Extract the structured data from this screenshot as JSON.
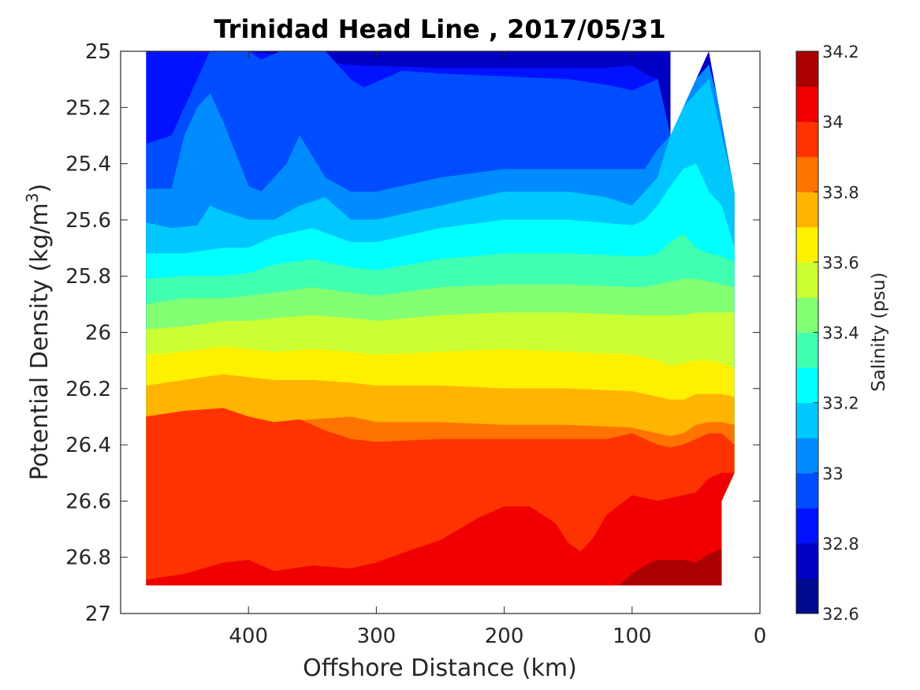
{
  "chart_data": {
    "type": "contourf",
    "title": "Trinidad Head Line , 2017/05/31",
    "xlabel": "Offshore Distance (km)",
    "ylabel_main": "Potential Density (kg/m",
    "ylabel_sup": "3",
    "ylabel_close": ")",
    "colorbar_label": "Salinity (psu)",
    "xlim": [
      500,
      0
    ],
    "x_reversed": true,
    "ylim": [
      25,
      27
    ],
    "y_reversed": true,
    "x_ticks": [
      400,
      300,
      200,
      100,
      0
    ],
    "x_tick_labels": [
      "400",
      "300",
      "200",
      "100",
      "0"
    ],
    "y_ticks": [
      25,
      25.2,
      25.4,
      25.6,
      25.8,
      26,
      26.2,
      26.4,
      26.6,
      26.8,
      27
    ],
    "y_tick_labels": [
      "25",
      "25.2",
      "25.4",
      "25.6",
      "25.8",
      "26",
      "26.2",
      "26.4",
      "26.6",
      "26.8",
      "27"
    ],
    "colorbar_ticks": [
      32.6,
      32.8,
      33,
      33.2,
      33.4,
      33.6,
      33.8,
      34,
      34.2
    ],
    "colorbar_tick_labels": [
      "32.6",
      "32.8",
      "33",
      "33.2",
      "33.4",
      "33.6",
      "33.8",
      "34",
      "34.2"
    ],
    "levels": [
      32.6,
      32.7,
      32.8,
      32.9,
      33.0,
      33.1,
      33.2,
      33.3,
      33.4,
      33.5,
      33.6,
      33.7,
      33.8,
      33.9,
      34.0,
      34.1,
      34.2
    ],
    "level_colors": [
      "#000a8f",
      "#0000c4",
      "#0012ff",
      "#004dff",
      "#008cff",
      "#00c8ff",
      "#00ffff",
      "#40ffb0",
      "#82ff72",
      "#ccff33",
      "#fff000",
      "#ffb400",
      "#ff7300",
      "#ff3300",
      "#f00000",
      "#aa0000"
    ],
    "data_extent": {
      "x_range": [
        480,
        20
      ],
      "y_range": [
        25,
        26.9
      ],
      "boundary": [
        [
          480,
          25
        ],
        [
          70,
          25
        ],
        [
          70,
          25.3
        ],
        [
          40,
          25
        ],
        [
          20,
          25.5
        ],
        [
          20,
          26.5
        ],
        [
          30,
          26.6
        ],
        [
          30,
          26.9
        ],
        [
          480,
          26.9
        ]
      ]
    },
    "contours": [
      {
        "level": 32.7,
        "x": [
          480,
          460,
          400,
          330,
          250,
          200,
          150,
          120,
          100,
          95,
          90
        ],
        "y": [
          25,
          25,
          25,
          25.0,
          25.0,
          25.0,
          25.0,
          25.0,
          25.0,
          25.03,
          25.06
        ]
      },
      {
        "level": 32.8,
        "x": [
          480,
          400,
          320,
          250,
          200,
          150,
          120,
          100,
          90,
          80
        ],
        "y": [
          25,
          25,
          25.05,
          25.06,
          25.06,
          25.06,
          25.06,
          25.05,
          25.08,
          25.1
        ]
      },
      {
        "level": 32.9,
        "x": [
          480,
          460,
          440,
          430,
          400,
          390,
          375,
          360,
          340,
          320,
          310,
          280,
          250,
          200,
          150,
          120,
          100,
          90,
          80,
          70
        ],
        "y": [
          25.33,
          25.3,
          25.1,
          25.0,
          25.0,
          25.03,
          25.0,
          25.0,
          25.0,
          25.1,
          25.13,
          25.07,
          25.08,
          25.09,
          25.1,
          25.12,
          25.14,
          25.12,
          25.1,
          25.3
        ]
      },
      {
        "level": 33.0,
        "x": [
          480,
          460,
          450,
          440,
          430,
          420,
          400,
          390,
          370,
          360,
          340,
          320,
          300,
          250,
          200,
          150,
          100,
          90,
          80,
          70,
          60,
          50,
          40,
          20
        ],
        "y": [
          25.49,
          25.49,
          25.3,
          25.2,
          25.15,
          25.25,
          25.48,
          25.5,
          25.4,
          25.3,
          25.45,
          25.5,
          25.5,
          25.45,
          25.42,
          25.42,
          25.42,
          25.42,
          25.35,
          25.3,
          25.2,
          25.1,
          25.05,
          25.4
        ]
      },
      {
        "level": 33.1,
        "x": [
          480,
          460,
          440,
          430,
          420,
          400,
          380,
          360,
          340,
          320,
          300,
          250,
          200,
          150,
          120,
          100,
          90,
          80,
          70,
          60,
          50,
          40,
          30,
          20
        ],
        "y": [
          25.61,
          25.63,
          25.62,
          25.55,
          25.57,
          25.6,
          25.6,
          25.55,
          25.52,
          25.6,
          25.6,
          25.55,
          25.5,
          25.5,
          25.52,
          25.55,
          25.5,
          25.45,
          25.3,
          25.2,
          25.15,
          25.1,
          25.3,
          25.5
        ]
      },
      {
        "level": 33.2,
        "x": [
          480,
          450,
          420,
          400,
          380,
          350,
          320,
          300,
          250,
          200,
          150,
          100,
          90,
          80,
          70,
          60,
          50,
          40,
          30,
          20
        ],
        "y": [
          25.72,
          25.72,
          25.7,
          25.7,
          25.66,
          25.63,
          25.68,
          25.68,
          25.63,
          25.6,
          25.6,
          25.62,
          25.6,
          25.55,
          25.48,
          25.42,
          25.4,
          25.5,
          25.55,
          25.7
        ]
      },
      {
        "level": 33.3,
        "x": [
          480,
          450,
          420,
          400,
          380,
          350,
          320,
          300,
          250,
          200,
          150,
          100,
          90,
          80,
          70,
          60,
          50,
          40,
          30,
          20
        ],
        "y": [
          25.81,
          25.8,
          25.8,
          25.79,
          25.76,
          25.74,
          25.77,
          25.78,
          25.74,
          25.72,
          25.72,
          25.73,
          25.73,
          25.72,
          25.68,
          25.65,
          25.7,
          25.72,
          25.73,
          25.75
        ]
      },
      {
        "level": 33.4,
        "x": [
          480,
          450,
          420,
          400,
          380,
          350,
          320,
          300,
          250,
          200,
          150,
          100,
          90,
          80,
          70,
          60,
          50,
          40,
          30,
          20
        ],
        "y": [
          25.9,
          25.88,
          25.88,
          25.87,
          25.86,
          25.84,
          25.86,
          25.87,
          25.84,
          25.83,
          25.83,
          25.84,
          25.84,
          25.83,
          25.82,
          25.81,
          25.81,
          25.82,
          25.83,
          25.84
        ]
      },
      {
        "level": 33.5,
        "x": [
          480,
          450,
          420,
          400,
          380,
          350,
          320,
          300,
          250,
          200,
          150,
          100,
          90,
          80,
          70,
          60,
          50,
          40,
          30,
          20
        ],
        "y": [
          25.99,
          25.98,
          25.96,
          25.96,
          25.95,
          25.94,
          25.95,
          25.96,
          25.94,
          25.93,
          25.93,
          25.94,
          25.94,
          25.94,
          25.94,
          25.94,
          25.93,
          25.93,
          25.93,
          25.93
        ]
      },
      {
        "level": 33.6,
        "x": [
          480,
          450,
          420,
          400,
          380,
          350,
          320,
          300,
          250,
          200,
          150,
          100,
          90,
          80,
          70,
          60,
          50,
          40,
          30,
          20
        ],
        "y": [
          26.08,
          26.07,
          26.05,
          26.06,
          26.07,
          26.06,
          26.07,
          26.08,
          26.07,
          26.06,
          26.07,
          26.08,
          26.09,
          26.1,
          26.12,
          26.11,
          26.1,
          26.1,
          26.11,
          26.13
        ]
      },
      {
        "level": 33.7,
        "x": [
          480,
          450,
          420,
          400,
          380,
          350,
          320,
          300,
          250,
          200,
          150,
          100,
          90,
          80,
          70,
          60,
          50,
          40,
          30,
          20
        ],
        "y": [
          26.19,
          26.17,
          26.15,
          26.16,
          26.17,
          26.17,
          26.18,
          26.19,
          26.19,
          26.2,
          26.2,
          26.21,
          26.22,
          26.23,
          26.24,
          26.24,
          26.22,
          26.22,
          26.22,
          26.23
        ]
      },
      {
        "level": 33.8,
        "x": [
          480,
          450,
          420,
          400,
          380,
          350,
          320,
          300,
          250,
          200,
          150,
          100,
          90,
          80,
          70,
          60,
          50,
          40,
          30,
          20
        ],
        "y": [
          26.3,
          26.28,
          26.27,
          26.3,
          26.32,
          26.31,
          26.3,
          26.32,
          26.32,
          26.33,
          26.33,
          26.34,
          26.35,
          26.36,
          26.37,
          26.36,
          26.33,
          26.32,
          26.32,
          26.33
        ]
      },
      {
        "level": 33.9,
        "x": [
          480,
          450,
          420,
          400,
          380,
          360,
          340,
          320,
          300,
          250,
          200,
          150,
          120,
          100,
          90,
          80,
          70,
          60,
          50,
          40,
          30,
          20
        ],
        "y": [
          26.3,
          26.28,
          26.27,
          26.3,
          26.32,
          26.31,
          26.35,
          26.38,
          26.39,
          26.38,
          26.38,
          26.38,
          26.38,
          26.36,
          26.38,
          26.4,
          26.41,
          26.4,
          26.38,
          26.36,
          26.36,
          26.4
        ]
      },
      {
        "level": 34.0,
        "x": [
          480,
          450,
          420,
          400,
          380,
          350,
          320,
          300,
          270,
          250,
          220,
          200,
          180,
          160,
          150,
          140,
          130,
          120,
          100,
          90,
          80,
          70,
          60,
          50,
          40,
          30,
          20
        ],
        "y": [
          26.88,
          26.86,
          26.82,
          26.81,
          26.85,
          26.83,
          26.84,
          26.82,
          26.77,
          26.74,
          26.66,
          26.62,
          26.62,
          26.68,
          26.75,
          26.78,
          26.73,
          26.65,
          26.58,
          26.59,
          26.6,
          26.59,
          26.58,
          26.57,
          26.52,
          26.5,
          26.5
        ]
      },
      {
        "level": 34.1,
        "x": [
          110,
          100,
          90,
          80,
          60,
          50,
          40,
          30
        ],
        "y": [
          26.9,
          26.86,
          26.83,
          26.81,
          26.81,
          26.82,
          26.79,
          26.77
        ]
      }
    ]
  }
}
